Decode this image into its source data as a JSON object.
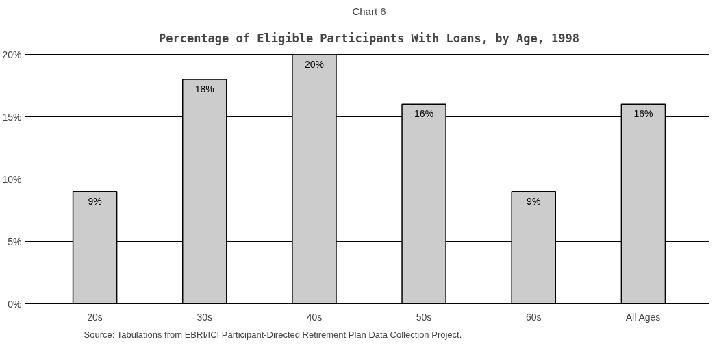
{
  "chart_data": {
    "type": "bar",
    "title": "Chart 6",
    "subtitle": "Percentage of Eligible Participants With Loans, by Age, 1998",
    "categories": [
      "20s",
      "30s",
      "40s",
      "50s",
      "60s",
      "All Ages"
    ],
    "values": [
      9,
      18,
      20,
      16,
      9,
      16
    ],
    "value_labels": [
      "9%",
      "18%",
      "20%",
      "16%",
      "9%",
      "16%"
    ],
    "color": "#cccccc",
    "ylim": [
      0,
      20
    ],
    "yticks": [
      {
        "value": 0,
        "label": "0%"
      },
      {
        "value": 5,
        "label": "5%"
      },
      {
        "value": 10,
        "label": "10%"
      },
      {
        "value": 15,
        "label": "15%"
      },
      {
        "value": 20,
        "label": "20%"
      }
    ],
    "grid": "y",
    "annotations": [
      "Source: Tabulations from EBRI/ICI Participant-Directed Retirement Plan Data Collection Project."
    ]
  }
}
